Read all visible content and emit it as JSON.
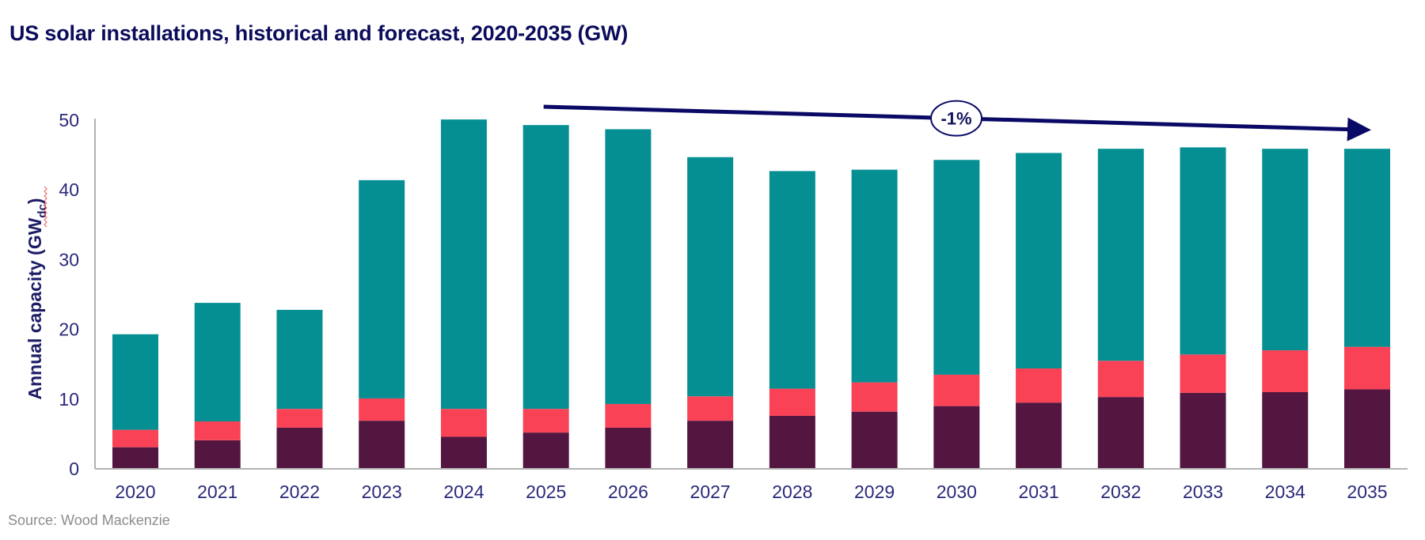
{
  "title": "US solar installations, historical and forecast, 2020-2035 (GW)",
  "source": "Source: Wood Mackenzie",
  "colors": {
    "title": "#0c0c5c",
    "axis_text": "#29297a",
    "arrow": "#0a0a66",
    "segment_bottom": "#521640",
    "segment_middle": "#f94256",
    "segment_top": "#068f93"
  },
  "chart_data": {
    "type": "bar",
    "stacked": true,
    "title": "US solar installations, historical and forecast, 2020-2035 (GW)",
    "xlabel": "",
    "ylabel": "Annual capacity (GW",
    "ylabel_subscript": "dc",
    "ylabel_suffix": ")",
    "ylim": [
      0,
      50
    ],
    "yticks": [
      0,
      10,
      20,
      30,
      40,
      50
    ],
    "grid": false,
    "legend": "none",
    "categories": [
      "2020",
      "2021",
      "2022",
      "2023",
      "2024",
      "2025",
      "2026",
      "2027",
      "2028",
      "2029",
      "2030",
      "2031",
      "2032",
      "2033",
      "2034",
      "2035"
    ],
    "series": [
      {
        "name": "bottom segment",
        "color": "#521640",
        "values": [
          3.1,
          4.1,
          5.9,
          6.9,
          4.6,
          5.2,
          5.9,
          6.9,
          7.6,
          8.2,
          9.0,
          9.5,
          10.3,
          10.9,
          11.0,
          11.4
        ]
      },
      {
        "name": "middle segment",
        "color": "#f94256",
        "values": [
          2.5,
          2.7,
          2.7,
          3.2,
          4.0,
          3.4,
          3.4,
          3.5,
          3.9,
          4.2,
          4.5,
          4.9,
          5.2,
          5.5,
          6.0,
          6.1
        ]
      },
      {
        "name": "top segment",
        "color": "#068f93",
        "values": [
          13.7,
          17.0,
          14.2,
          31.3,
          41.5,
          40.7,
          39.4,
          34.3,
          31.2,
          30.5,
          30.8,
          30.9,
          30.4,
          29.7,
          28.9,
          28.4
        ]
      }
    ],
    "totals": [
      19.3,
      23.8,
      22.8,
      41.4,
      50.1,
      49.3,
      48.7,
      44.7,
      42.7,
      42.9,
      44.3,
      45.3,
      45.9,
      46.1,
      45.9,
      45.9
    ],
    "annotations": [
      {
        "type": "trend-arrow",
        "from_category": "2025",
        "to_category": "2035",
        "label": "-1%"
      }
    ]
  }
}
